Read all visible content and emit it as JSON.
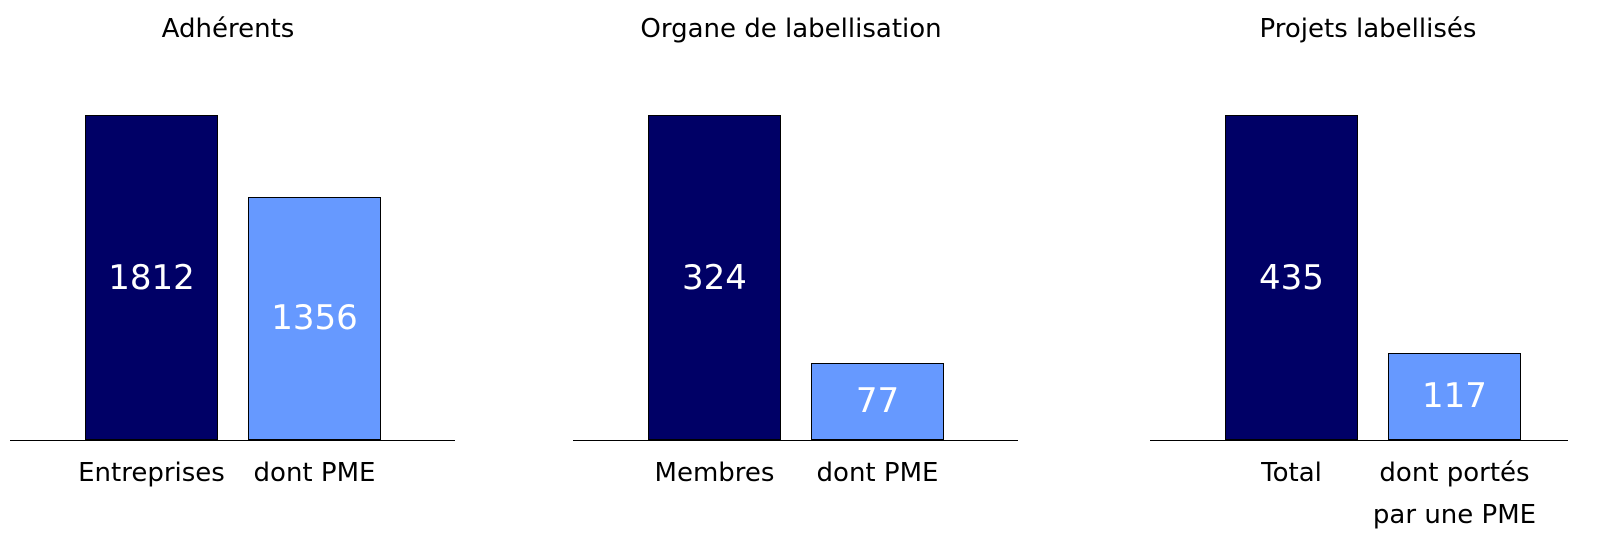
{
  "chart_data": [
    {
      "type": "bar",
      "title": "Adhérents",
      "categories": [
        "Entreprises",
        "dont PME"
      ],
      "values": [
        1812,
        1356
      ],
      "colors": [
        "#000066",
        "#6699ff"
      ],
      "ylim": [
        0,
        1812
      ]
    },
    {
      "type": "bar",
      "title": "Organe de labellisation",
      "categories": [
        "Membres",
        "dont PME"
      ],
      "values": [
        324,
        77
      ],
      "colors": [
        "#000066",
        "#6699ff"
      ],
      "ylim": [
        0,
        324
      ]
    },
    {
      "type": "bar",
      "title": "Projets labellisés",
      "categories": [
        "Total",
        "dont portés\npar une PME"
      ],
      "values": [
        435,
        117
      ],
      "colors": [
        "#000066",
        "#6699ff"
      ],
      "ylim": [
        0,
        435
      ]
    }
  ]
}
